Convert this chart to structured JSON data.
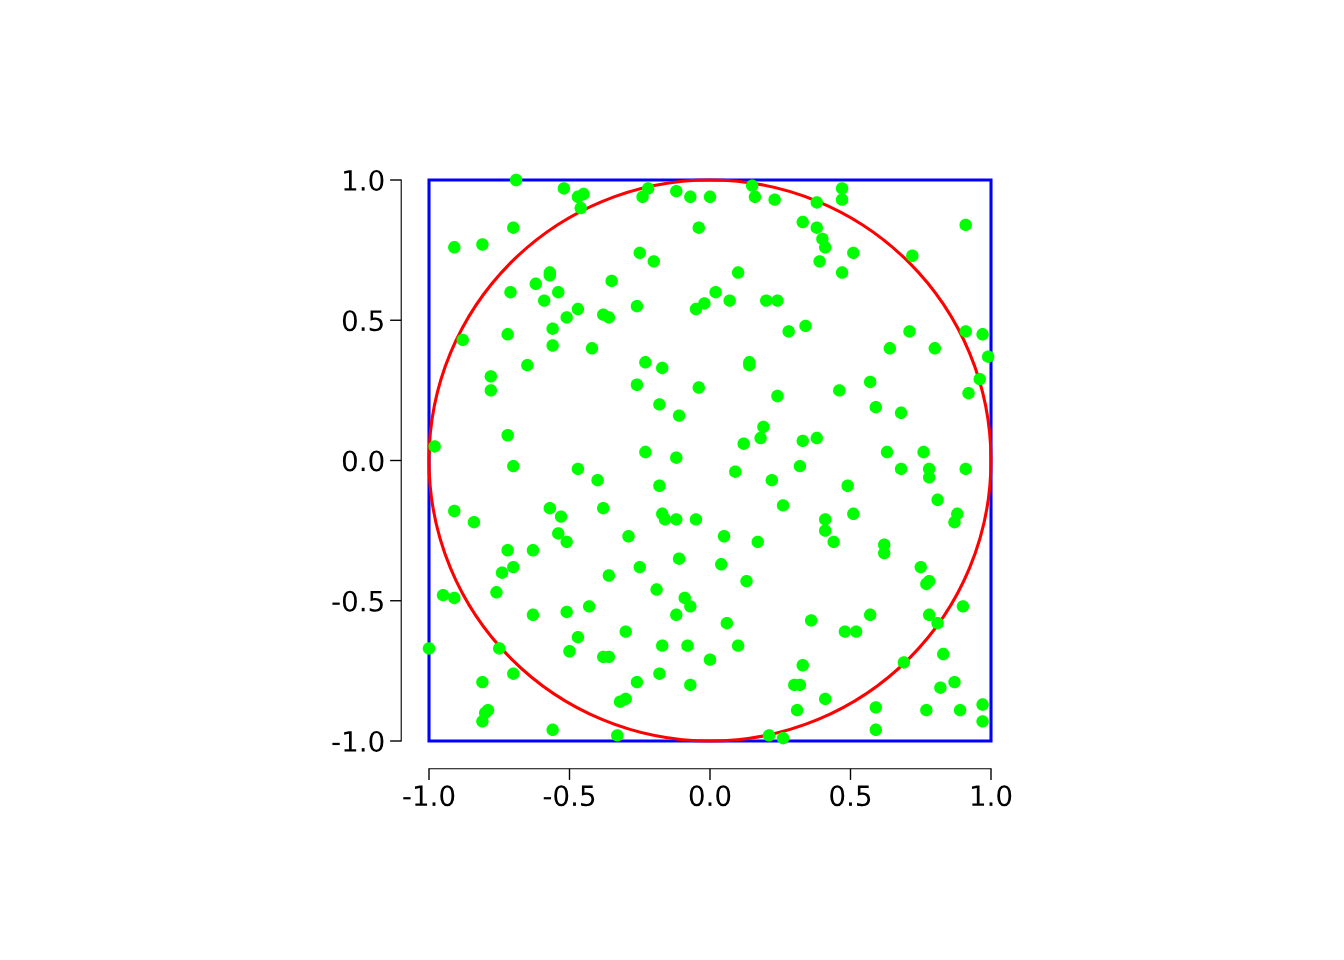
{
  "chart_data": {
    "type": "scatter",
    "xlim": [
      -1,
      1
    ],
    "ylim": [
      -1,
      1
    ],
    "xticks": [
      {
        "value": -1,
        "label": "-1.0"
      },
      {
        "value": -0.5,
        "label": "-0.5"
      },
      {
        "value": 0,
        "label": "0.0"
      },
      {
        "value": 0.5,
        "label": "0.5"
      },
      {
        "value": 1,
        "label": "1.0"
      }
    ],
    "yticks": [
      {
        "value": -1,
        "label": "-1.0"
      },
      {
        "value": -0.5,
        "label": "-0.5"
      },
      {
        "value": 0,
        "label": "0.0"
      },
      {
        "value": 0.5,
        "label": "0.5"
      },
      {
        "value": 1,
        "label": "1.0"
      }
    ],
    "grid": false,
    "legend": false,
    "series": [
      {
        "marker": "circle",
        "color": "#00ff00",
        "x": [
          -0.69,
          -0.52,
          -0.47,
          -0.45,
          -0.46,
          -0.22,
          -0.24,
          -0.12,
          -0.07,
          0.0,
          0.15,
          0.16,
          0.23,
          0.47,
          0.47,
          0.38,
          0.91,
          -0.91,
          -0.81,
          -0.7,
          -0.04,
          0.33,
          0.38,
          0.4,
          0.41,
          0.39,
          -0.25,
          -0.2,
          0.72,
          0.51,
          0.47,
          0.1,
          -0.57,
          -0.57,
          -0.62,
          -0.71,
          -0.35,
          -0.59,
          -0.54,
          0.02,
          0.07,
          -0.02,
          -0.05,
          0.2,
          0.24,
          -0.26,
          -0.47,
          -0.51,
          -0.38,
          -0.36,
          -0.56,
          -0.72,
          0.28,
          0.34,
          -0.88,
          -0.56,
          -0.42,
          0.71,
          0.91,
          0.97,
          0.99,
          0.64,
          0.8,
          -0.23,
          0.14,
          0.14,
          -0.65,
          -0.17,
          -0.78,
          -0.26,
          -0.04,
          -0.78,
          0.46,
          0.24,
          0.57,
          0.92,
          0.96,
          -0.18,
          0.59,
          0.68,
          -0.11,
          0.19,
          -0.72,
          0.38,
          0.18,
          0.12,
          0.33,
          -0.98,
          -0.23,
          -0.12,
          0.63,
          0.76,
          -0.7,
          -0.47,
          0.32,
          0.68,
          0.78,
          0.78,
          0.91,
          0.09,
          -0.4,
          0.22,
          -0.18,
          0.49,
          0.81,
          -0.91,
          -0.57,
          -0.38,
          0.26,
          -0.84,
          -0.53,
          -0.17,
          -0.16,
          -0.12,
          -0.05,
          0.51,
          0.41,
          0.41,
          0.88,
          0.87,
          -0.54,
          -0.51,
          0.44,
          -0.29,
          0.05,
          0.17,
          -0.72,
          -0.63,
          0.62,
          0.62,
          -0.11,
          -0.7,
          -0.74,
          -0.25,
          0.04,
          -0.36,
          0.75,
          0.78,
          0.77,
          0.13,
          -0.76,
          -0.95,
          -0.91,
          -0.19,
          -0.09,
          -0.07,
          -0.43,
          -0.51,
          -0.63,
          -0.12,
          0.78,
          0.57,
          0.9,
          0.81,
          0.36,
          0.06,
          0.48,
          0.52,
          -0.3,
          -0.47,
          -0.17,
          -0.08,
          0.1,
          -1.0,
          -0.75,
          -0.5,
          -0.38,
          -0.36,
          0.0,
          0.69,
          0.33,
          0.83,
          -0.7,
          -0.18,
          -0.81,
          -0.26,
          -0.07,
          0.3,
          0.32,
          0.87,
          0.82,
          0.41,
          -0.3,
          -0.32,
          -0.79,
          -0.8,
          0.59,
          0.31,
          0.77,
          0.89,
          0.97,
          -0.81,
          0.97,
          -0.56,
          0.59,
          -0.33,
          0.21,
          0.26
        ],
        "values": [
          1.0,
          0.97,
          0.94,
          0.95,
          0.9,
          0.97,
          0.94,
          0.96,
          0.94,
          0.94,
          0.98,
          0.94,
          0.93,
          0.97,
          0.93,
          0.92,
          0.84,
          0.76,
          0.77,
          0.83,
          0.83,
          0.85,
          0.83,
          0.79,
          0.76,
          0.71,
          0.74,
          0.71,
          0.73,
          0.74,
          0.67,
          0.67,
          0.67,
          0.66,
          0.63,
          0.6,
          0.64,
          0.57,
          0.6,
          0.6,
          0.57,
          0.56,
          0.54,
          0.57,
          0.57,
          0.55,
          0.54,
          0.51,
          0.52,
          0.51,
          0.47,
          0.45,
          0.46,
          0.48,
          0.43,
          0.41,
          0.4,
          0.46,
          0.46,
          0.45,
          0.37,
          0.4,
          0.4,
          0.35,
          0.35,
          0.34,
          0.34,
          0.33,
          0.3,
          0.27,
          0.26,
          0.25,
          0.25,
          0.23,
          0.28,
          0.24,
          0.29,
          0.2,
          0.19,
          0.17,
          0.16,
          0.12,
          0.09,
          0.08,
          0.08,
          0.06,
          0.07,
          0.05,
          0.03,
          0.01,
          0.03,
          0.03,
          -0.02,
          -0.03,
          -0.02,
          -0.03,
          -0.03,
          -0.06,
          -0.03,
          -0.04,
          -0.07,
          -0.07,
          -0.09,
          -0.09,
          -0.14,
          -0.18,
          -0.17,
          -0.17,
          -0.16,
          -0.22,
          -0.2,
          -0.19,
          -0.21,
          -0.21,
          -0.21,
          -0.19,
          -0.21,
          -0.25,
          -0.19,
          -0.22,
          -0.26,
          -0.29,
          -0.29,
          -0.27,
          -0.27,
          -0.29,
          -0.32,
          -0.32,
          -0.3,
          -0.33,
          -0.35,
          -0.38,
          -0.4,
          -0.38,
          -0.37,
          -0.41,
          -0.38,
          -0.43,
          -0.44,
          -0.43,
          -0.47,
          -0.48,
          -0.49,
          -0.46,
          -0.49,
          -0.52,
          -0.52,
          -0.54,
          -0.55,
          -0.55,
          -0.55,
          -0.55,
          -0.52,
          -0.58,
          -0.57,
          -0.58,
          -0.61,
          -0.61,
          -0.61,
          -0.63,
          -0.66,
          -0.66,
          -0.66,
          -0.67,
          -0.67,
          -0.68,
          -0.7,
          -0.7,
          -0.71,
          -0.72,
          -0.73,
          -0.69,
          -0.76,
          -0.76,
          -0.79,
          -0.79,
          -0.8,
          -0.8,
          -0.8,
          -0.79,
          -0.81,
          -0.85,
          -0.85,
          -0.86,
          -0.89,
          -0.9,
          -0.88,
          -0.89,
          -0.89,
          -0.89,
          -0.87,
          -0.93,
          -0.93,
          -0.96,
          -0.96,
          -0.98,
          -0.98,
          -0.99
        ]
      }
    ]
  }
}
